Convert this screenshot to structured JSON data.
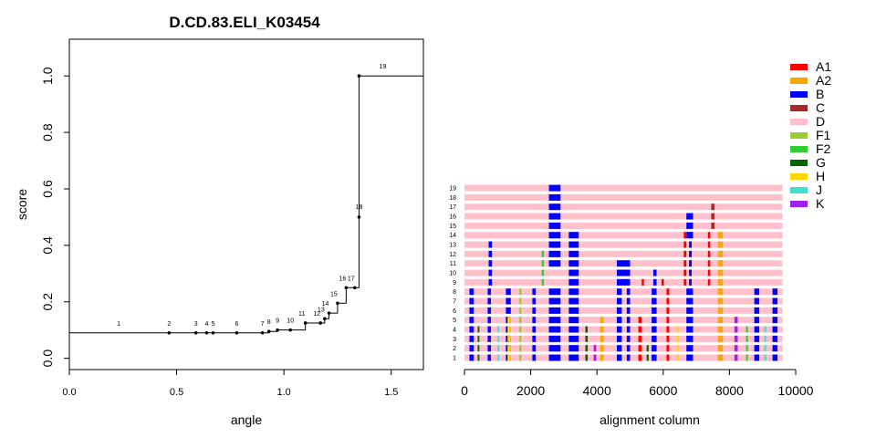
{
  "chart_data": [
    {
      "type": "step",
      "title": "D.CD.83.ELI_K03454",
      "xlabel": "angle",
      "ylabel": "score",
      "xlim": [
        0,
        1.65
      ],
      "ylim": [
        -0.04,
        1.13
      ],
      "xticks": [
        "0.0",
        "0.5",
        "1.0",
        "1.5"
      ],
      "yticks": [
        "0.0",
        "0.2",
        "0.4",
        "0.6",
        "0.8",
        "1.0"
      ],
      "points": [
        {
          "label": "1",
          "x": 0.23,
          "y": 0.09,
          "marker": false
        },
        {
          "label": "2",
          "x": 0.465,
          "y": 0.09,
          "marker": true
        },
        {
          "label": "3",
          "x": 0.59,
          "y": 0.09,
          "marker": true
        },
        {
          "label": "4",
          "x": 0.64,
          "y": 0.09,
          "marker": true
        },
        {
          "label": "5",
          "x": 0.67,
          "y": 0.09,
          "marker": true
        },
        {
          "label": "6",
          "x": 0.78,
          "y": 0.09,
          "marker": true
        },
        {
          "label": "7",
          "x": 0.9,
          "y": 0.09,
          "marker": true
        },
        {
          "label": "8",
          "x": 0.93,
          "y": 0.095,
          "marker": true
        },
        {
          "label": "9",
          "x": 0.97,
          "y": 0.1,
          "marker": true
        },
        {
          "label": "10",
          "x": 1.03,
          "y": 0.1,
          "marker": true
        },
        {
          "label": "11",
          "x": 1.1,
          "y": 0.125,
          "marker": true
        },
        {
          "label": "12",
          "x": 1.17,
          "y": 0.125,
          "marker": true
        },
        {
          "label": "13",
          "x": 1.19,
          "y": 0.14,
          "marker": true
        },
        {
          "label": "14",
          "x": 1.21,
          "y": 0.16,
          "marker": true
        },
        {
          "label": "15",
          "x": 1.25,
          "y": 0.195,
          "marker": true
        },
        {
          "label": "16",
          "x": 1.29,
          "y": 0.25,
          "marker": true
        },
        {
          "label": "17",
          "x": 1.33,
          "y": 0.25,
          "marker": true
        },
        {
          "label": "18",
          "x": 1.35,
          "y": 0.5,
          "marker": true
        },
        {
          "label": "19",
          "x": 1.35,
          "y": 1.0,
          "marker": true
        }
      ]
    },
    {
      "type": "alignment",
      "xlabel": "alignment column",
      "xlim": [
        0,
        10000
      ],
      "xticks": [
        "0",
        "2000",
        "4000",
        "6000",
        "8000",
        "10000"
      ],
      "row_labels": [
        "1",
        "2",
        "3",
        "4",
        "5",
        "6",
        "7",
        "8",
        "9",
        "10",
        "11",
        "12",
        "13",
        "14",
        "15",
        "16",
        "17",
        "18",
        "19"
      ],
      "row_start": 0,
      "row_end": 9600,
      "background": "D",
      "legend": [
        {
          "label": "A1",
          "color": "#ff0000"
        },
        {
          "label": "A2",
          "color": "#ffa500"
        },
        {
          "label": "B",
          "color": "#0000ff"
        },
        {
          "label": "C",
          "color": "#a52a2a"
        },
        {
          "label": "D",
          "color": "#ffc0cb"
        },
        {
          "label": "F1",
          "color": "#9acd32"
        },
        {
          "label": "F2",
          "color": "#32cd32"
        },
        {
          "label": "G",
          "color": "#006400"
        },
        {
          "label": "H",
          "color": "#ffd700"
        },
        {
          "label": "J",
          "color": "#40e0d0"
        },
        {
          "label": "K",
          "color": "#a020f0"
        }
      ],
      "segments": [
        {
          "rows": [
            16,
            17,
            18
          ],
          "start": 2550,
          "end": 2900,
          "st": "B"
        },
        {
          "rows": [
            10,
            11,
            12,
            13,
            14,
            15
          ],
          "start": 2550,
          "end": 2900,
          "st": "B"
        },
        {
          "rows": [
            8,
            9,
            10,
            11,
            12,
            13
          ],
          "start": 3150,
          "end": 3450,
          "st": "B"
        },
        {
          "rows": [
            8,
            9,
            10,
            11,
            12
          ],
          "start": 730,
          "end": 830,
          "st": "B"
        },
        {
          "rows": [
            8,
            9,
            10,
            11
          ],
          "start": 2330,
          "end": 2400,
          "st": "F2"
        },
        {
          "rows": [
            8,
            9,
            10
          ],
          "start": 4600,
          "end": 5000,
          "st": "B"
        },
        {
          "rows": [
            13,
            14,
            15
          ],
          "start": 6700,
          "end": 6900,
          "st": "B"
        },
        {
          "rows": [
            14,
            15,
            16
          ],
          "start": 7450,
          "end": 7550,
          "st": "C"
        },
        {
          "rows": [
            8,
            9,
            10,
            11,
            12,
            13
          ],
          "start": 7650,
          "end": 7800,
          "st": "A2"
        },
        {
          "rows": [
            8,
            9,
            10,
            11,
            12,
            13
          ],
          "start": 6620,
          "end": 6700,
          "st": "A1"
        },
        {
          "rows": [
            8,
            9,
            10,
            11,
            12,
            13
          ],
          "start": 6780,
          "end": 6860,
          "st": "B"
        },
        {
          "rows": [
            8,
            9,
            10,
            11,
            12,
            13
          ],
          "start": 7350,
          "end": 7420,
          "st": "A1"
        },
        {
          "rows": [
            8,
            9
          ],
          "start": 5700,
          "end": 5800,
          "st": "B"
        },
        {
          "rows": [
            8
          ],
          "start": 5350,
          "end": 5420,
          "st": "A1"
        },
        {
          "rows": [
            8
          ],
          "start": 5950,
          "end": 6020,
          "st": "A1"
        },
        {
          "rows": [
            0,
            1,
            2,
            3,
            4,
            5,
            6,
            7
          ],
          "start": 150,
          "end": 280,
          "st": "B"
        },
        {
          "rows": [
            0,
            1,
            2,
            3,
            4,
            5,
            6,
            7
          ],
          "start": 700,
          "end": 800,
          "st": "B"
        },
        {
          "rows": [
            0,
            1,
            2,
            3,
            4,
            5,
            6,
            7
          ],
          "start": 1250,
          "end": 1400,
          "st": "B"
        },
        {
          "rows": [
            0,
            1,
            2,
            3,
            4,
            5,
            6,
            7
          ],
          "start": 1650,
          "end": 1720,
          "st": "F1"
        },
        {
          "rows": [
            0,
            1,
            2,
            3,
            4,
            5,
            6,
            7
          ],
          "start": 2050,
          "end": 2150,
          "st": "B"
        },
        {
          "rows": [
            0,
            1,
            2,
            3,
            4,
            5,
            6,
            7
          ],
          "start": 2550,
          "end": 2900,
          "st": "B"
        },
        {
          "rows": [
            0,
            1,
            2,
            3,
            4,
            5,
            6,
            7
          ],
          "start": 3150,
          "end": 3450,
          "st": "B"
        },
        {
          "rows": [
            0,
            1,
            2,
            3,
            4,
            5,
            6,
            7
          ],
          "start": 4600,
          "end": 4750,
          "st": "B"
        },
        {
          "rows": [
            0,
            1,
            2,
            3,
            4,
            5,
            6,
            7
          ],
          "start": 4900,
          "end": 5000,
          "st": "B"
        },
        {
          "rows": [
            0,
            1,
            2,
            3,
            4,
            5,
            6,
            7
          ],
          "start": 5650,
          "end": 5800,
          "st": "B"
        },
        {
          "rows": [
            0,
            1,
            2,
            3,
            4,
            5,
            6,
            7
          ],
          "start": 6100,
          "end": 6180,
          "st": "A1"
        },
        {
          "rows": [
            0,
            1,
            2,
            3,
            4,
            5,
            6,
            7
          ],
          "start": 6700,
          "end": 6900,
          "st": "B"
        },
        {
          "rows": [
            0,
            1,
            2,
            3,
            4,
            5,
            6,
            7
          ],
          "start": 7650,
          "end": 7800,
          "st": "A2"
        },
        {
          "rows": [
            0,
            1,
            2,
            3,
            4,
            5,
            6,
            7
          ],
          "start": 8750,
          "end": 8900,
          "st": "B"
        },
        {
          "rows": [
            0,
            1,
            2,
            3,
            4,
            5,
            6,
            7
          ],
          "start": 9300,
          "end": 9450,
          "st": "B"
        },
        {
          "rows": [
            0,
            1,
            2,
            3,
            4
          ],
          "start": 1300,
          "end": 1400,
          "st": "H"
        },
        {
          "rows": [
            0,
            1,
            2,
            3,
            4
          ],
          "start": 4100,
          "end": 4200,
          "st": "A2"
        },
        {
          "rows": [
            0,
            1,
            2,
            3,
            4
          ],
          "start": 5250,
          "end": 5350,
          "st": "A1"
        },
        {
          "rows": [
            0,
            1,
            2,
            3,
            4
          ],
          "start": 8150,
          "end": 8250,
          "st": "K"
        },
        {
          "rows": [
            0,
            1,
            2,
            3
          ],
          "start": 400,
          "end": 450,
          "st": "G"
        },
        {
          "rows": [
            0,
            1,
            2,
            3
          ],
          "start": 1000,
          "end": 1050,
          "st": "J"
        },
        {
          "rows": [
            0,
            1,
            2,
            3
          ],
          "start": 3650,
          "end": 3720,
          "st": "G"
        },
        {
          "rows": [
            0,
            1,
            2,
            3
          ],
          "start": 6400,
          "end": 6470,
          "st": "H"
        },
        {
          "rows": [
            0,
            1,
            2,
            3
          ],
          "start": 8500,
          "end": 8560,
          "st": "F2"
        },
        {
          "rows": [
            0,
            1,
            2,
            3
          ],
          "start": 9050,
          "end": 9110,
          "st": "J"
        },
        {
          "rows": [
            0,
            1
          ],
          "start": 3900,
          "end": 3980,
          "st": "K"
        },
        {
          "rows": [
            0,
            1
          ],
          "start": 5500,
          "end": 5560,
          "st": "G"
        }
      ]
    }
  ]
}
